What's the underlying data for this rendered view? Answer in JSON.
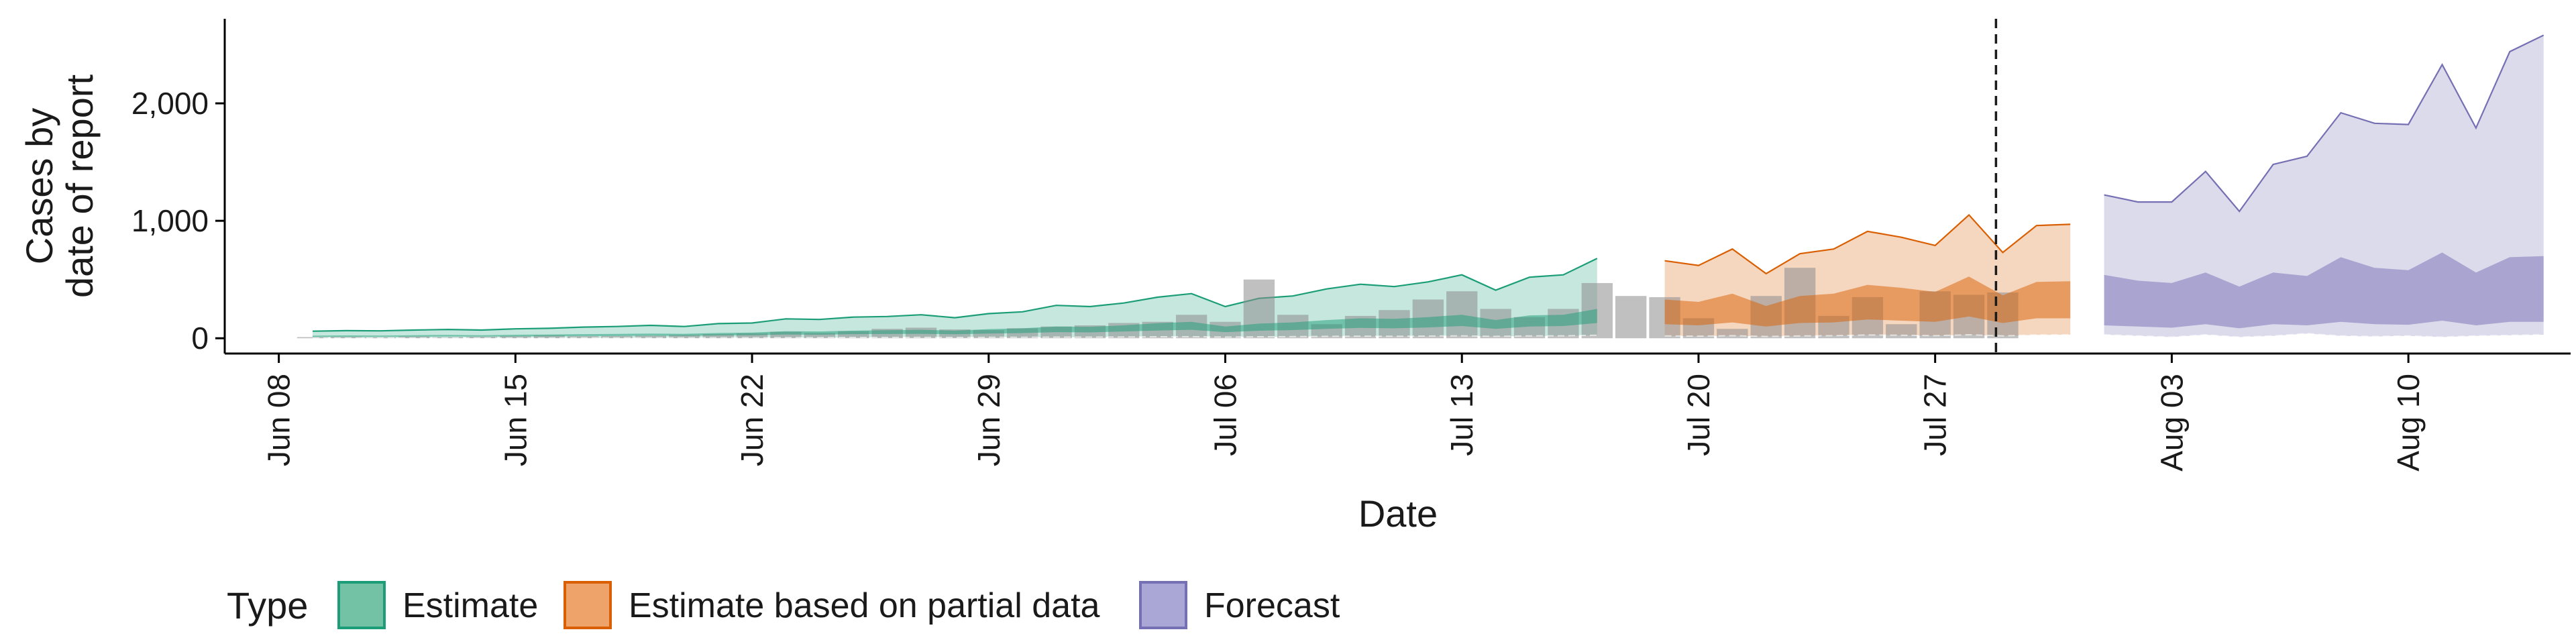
{
  "chart_data": {
    "type": "area",
    "xlabel": "Date",
    "ylabel_lines": [
      "Cases by",
      "date of report"
    ],
    "x_ticks": [
      "Jun 08",
      "Jun 15",
      "Jun 22",
      "Jun 29",
      "Jul 06",
      "Jul 13",
      "Jul 20",
      "Jul 27",
      "Aug 03",
      "Aug 10"
    ],
    "x_tick_days": [
      0,
      7,
      14,
      21,
      28,
      35,
      42,
      49,
      56,
      63
    ],
    "y_ticks": [
      0,
      1000,
      2000
    ],
    "y_tick_labels": [
      "0",
      "1,000",
      "2,000"
    ],
    "ylim": [
      -130,
      2720
    ],
    "xlim_days": [
      -1.6,
      67.8
    ],
    "grid": false,
    "legend_position": "bottom-left",
    "legend": {
      "title": "Type",
      "items": [
        {
          "label": "Estimate",
          "fill": "#74c2a6",
          "stroke": "#1b9e77"
        },
        {
          "label": "Estimate based on partial data",
          "fill": "#eda36a",
          "stroke": "#d95f02"
        },
        {
          "label": "Forecast",
          "fill": "#aaa6d5",
          "stroke": "#7570b3"
        }
      ]
    },
    "forecast_start_day": 50.8,
    "colors": {
      "estimate": "#1b9e77",
      "partial": "#d95f02",
      "forecast": "#7570b3",
      "bars": "#8c8c8c",
      "divider": "#1a1a1a"
    },
    "reported_cases": {
      "start_day": 1,
      "values": [
        10,
        12,
        8,
        15,
        10,
        13,
        18,
        24,
        18,
        20,
        22,
        28,
        35,
        42,
        55,
        45,
        60,
        80,
        90,
        75,
        70,
        85,
        100,
        110,
        130,
        140,
        200,
        140,
        500,
        200,
        120,
        190,
        240,
        330,
        400,
        250,
        180,
        250,
        470,
        360,
        350,
        170,
        80,
        360,
        600,
        190,
        350,
        120,
        400,
        370,
        390
      ]
    },
    "series": [
      {
        "name": "Estimate",
        "start_day": 1,
        "upper": [
          60,
          65,
          63,
          70,
          75,
          70,
          80,
          85,
          95,
          100,
          110,
          100,
          125,
          130,
          165,
          160,
          180,
          185,
          200,
          175,
          210,
          225,
          280,
          270,
          300,
          350,
          380,
          270,
          340,
          360,
          420,
          460,
          440,
          480,
          540,
          410,
          520,
          540,
          680
        ],
        "inner_upper": [
          22,
          24,
          23,
          26,
          28,
          26,
          30,
          32,
          35,
          37,
          40,
          38,
          45,
          48,
          60,
          58,
          65,
          68,
          72,
          65,
          78,
          85,
          100,
          98,
          110,
          128,
          140,
          100,
          125,
          135,
          155,
          170,
          165,
          180,
          200,
          155,
          195,
          200,
          250
        ],
        "inner_lower": [
          12,
          13,
          12,
          14,
          15,
          14,
          16,
          17,
          19,
          20,
          22,
          20,
          24,
          26,
          32,
          30,
          35,
          36,
          38,
          34,
          40,
          44,
          52,
          50,
          58,
          66,
          72,
          52,
          64,
          70,
          80,
          88,
          85,
          92,
          104,
          80,
          100,
          104,
          130
        ],
        "lower": [
          2,
          2,
          2,
          3,
          3,
          3,
          3,
          3,
          4,
          4,
          4,
          4,
          5,
          5,
          6,
          6,
          7,
          7,
          8,
          7,
          8,
          9,
          10,
          10,
          11,
          13,
          14,
          10,
          13,
          14,
          16,
          18,
          17,
          19,
          21,
          16,
          20,
          21,
          26
        ]
      },
      {
        "name": "Estimate based on partial data",
        "start_day": 41,
        "upper": [
          660,
          620,
          760,
          550,
          720,
          760,
          910,
          860,
          790,
          1050,
          730,
          960,
          970
        ],
        "inner_upper": [
          330,
          310,
          380,
          275,
          360,
          380,
          455,
          430,
          395,
          525,
          365,
          480,
          485
        ],
        "inner_lower": [
          120,
          110,
          135,
          100,
          130,
          135,
          160,
          150,
          140,
          185,
          130,
          170,
          170
        ],
        "lower": [
          20,
          18,
          22,
          15,
          20,
          22,
          28,
          26,
          22,
          30,
          20,
          28,
          30
        ]
      },
      {
        "name": "Forecast",
        "start_day": 54,
        "upper": [
          1220,
          1160,
          1160,
          1420,
          1080,
          1480,
          1550,
          1920,
          1830,
          1820,
          2330,
          1790,
          2440,
          2580
        ],
        "inner_upper": [
          540,
          490,
          470,
          560,
          440,
          560,
          530,
          690,
          600,
          580,
          730,
          560,
          690,
          700
        ],
        "inner_lower": [
          110,
          100,
          90,
          120,
          85,
          120,
          110,
          140,
          120,
          115,
          150,
          110,
          140,
          140
        ],
        "lower": [
          30,
          20,
          10,
          30,
          10,
          20,
          40,
          20,
          15,
          20,
          10,
          20,
          25,
          30
        ]
      }
    ]
  }
}
